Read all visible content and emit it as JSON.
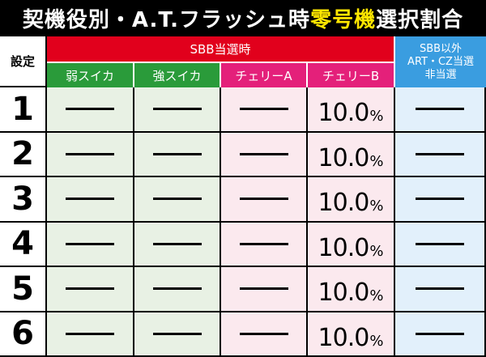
{
  "title": {
    "part1": "契機役別・A.T.フラッシュ時",
    "highlight": "零号機",
    "part2": "選択割合"
  },
  "header": {
    "setting": "設定",
    "sbb_group": "SBB当選時",
    "columns": [
      "弱スイカ",
      "強スイカ",
      "チェリーA",
      "チェリーB"
    ],
    "other": {
      "line1": "SBB以外",
      "line2": "ART・CZ当選",
      "line3": "非当選"
    }
  },
  "rows": [
    {
      "setting": "1",
      "cherry_b": "10.0",
      "unit": "%"
    },
    {
      "setting": "2",
      "cherry_b": "10.0",
      "unit": "%"
    },
    {
      "setting": "3",
      "cherry_b": "10.0",
      "unit": "%"
    },
    {
      "setting": "4",
      "cherry_b": "10.0",
      "unit": "%"
    },
    {
      "setting": "5",
      "cherry_b": "10.0",
      "unit": "%"
    },
    {
      "setting": "6",
      "cherry_b": "10.0",
      "unit": "%"
    }
  ],
  "colors": {
    "title_bg": "#000000",
    "highlight": "#ffe600",
    "sbb_header": "#e1001c",
    "green_header": "#2a9b3a",
    "pink_header": "#e4207a",
    "blue_header": "#3a9de0"
  }
}
